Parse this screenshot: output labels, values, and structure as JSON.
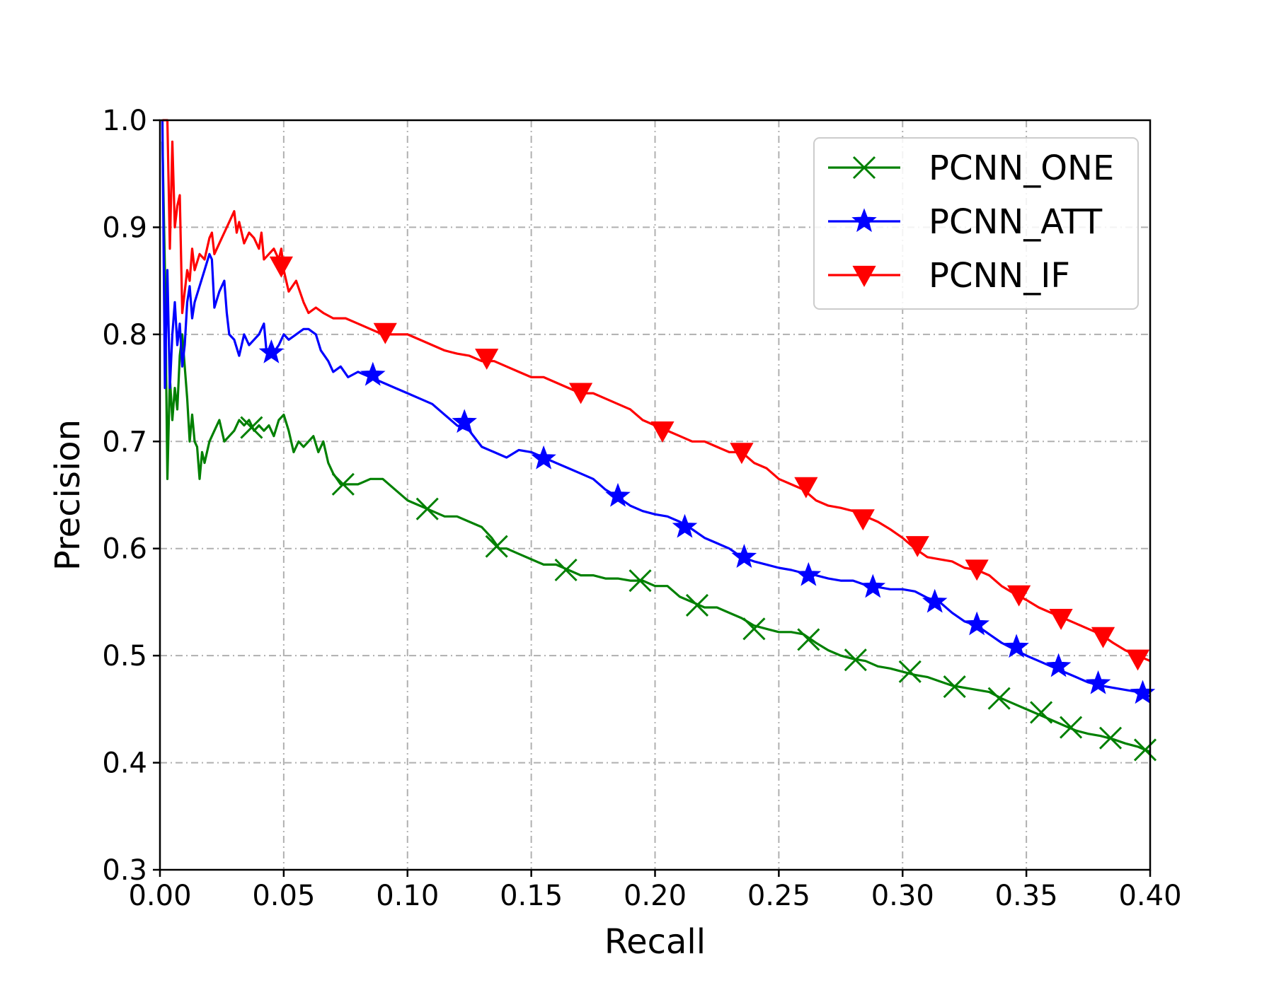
{
  "chart_data": {
    "type": "line",
    "xlabel": "Recall",
    "ylabel": "Precision",
    "xlim": [
      0.0,
      0.4
    ],
    "ylim": [
      0.3,
      1.0
    ],
    "xticks": [
      "0.00",
      "0.05",
      "0.10",
      "0.15",
      "0.20",
      "0.25",
      "0.30",
      "0.35",
      "0.40"
    ],
    "yticks": [
      "0.3",
      "0.4",
      "0.5",
      "0.6",
      "0.7",
      "0.8",
      "0.9",
      "1.0"
    ],
    "grid": true,
    "legend_position": "top-right",
    "series": [
      {
        "name": "PCNN_ONE",
        "color": "#008000",
        "marker": "x",
        "x": [
          0.001,
          0.002,
          0.003,
          0.004,
          0.005,
          0.006,
          0.007,
          0.008,
          0.009,
          0.01,
          0.011,
          0.012,
          0.013,
          0.014,
          0.015,
          0.016,
          0.017,
          0.018,
          0.02,
          0.022,
          0.024,
          0.026,
          0.028,
          0.03,
          0.032,
          0.034,
          0.036,
          0.038,
          0.04,
          0.042,
          0.044,
          0.046,
          0.048,
          0.05,
          0.052,
          0.054,
          0.056,
          0.058,
          0.06,
          0.062,
          0.064,
          0.066,
          0.068,
          0.07,
          0.073,
          0.076,
          0.08,
          0.085,
          0.09,
          0.095,
          0.1,
          0.105,
          0.11,
          0.115,
          0.12,
          0.125,
          0.13,
          0.134,
          0.137,
          0.14,
          0.145,
          0.15,
          0.155,
          0.16,
          0.165,
          0.17,
          0.175,
          0.18,
          0.185,
          0.19,
          0.195,
          0.2,
          0.205,
          0.21,
          0.215,
          0.22,
          0.225,
          0.23,
          0.235,
          0.24,
          0.245,
          0.25,
          0.255,
          0.26,
          0.265,
          0.27,
          0.275,
          0.28,
          0.285,
          0.29,
          0.295,
          0.3,
          0.305,
          0.31,
          0.315,
          0.32,
          0.325,
          0.33,
          0.335,
          0.34,
          0.345,
          0.35,
          0.355,
          0.36,
          0.365,
          0.37,
          0.375,
          0.38,
          0.385,
          0.39,
          0.395,
          0.4
        ],
        "y": [
          0.98,
          0.86,
          0.665,
          0.76,
          0.72,
          0.75,
          0.73,
          0.78,
          0.8,
          0.77,
          0.74,
          0.7,
          0.725,
          0.7,
          0.695,
          0.665,
          0.69,
          0.68,
          0.7,
          0.71,
          0.72,
          0.7,
          0.705,
          0.71,
          0.72,
          0.715,
          0.72,
          0.71,
          0.715,
          0.71,
          0.715,
          0.705,
          0.72,
          0.725,
          0.71,
          0.69,
          0.7,
          0.695,
          0.7,
          0.705,
          0.69,
          0.7,
          0.68,
          0.67,
          0.66,
          0.66,
          0.66,
          0.665,
          0.665,
          0.655,
          0.645,
          0.64,
          0.635,
          0.63,
          0.63,
          0.625,
          0.62,
          0.61,
          0.6,
          0.6,
          0.595,
          0.59,
          0.585,
          0.585,
          0.58,
          0.575,
          0.575,
          0.572,
          0.572,
          0.57,
          0.57,
          0.565,
          0.565,
          0.555,
          0.55,
          0.545,
          0.545,
          0.54,
          0.535,
          0.528,
          0.525,
          0.522,
          0.522,
          0.52,
          0.512,
          0.505,
          0.5,
          0.497,
          0.495,
          0.49,
          0.488,
          0.485,
          0.482,
          0.48,
          0.476,
          0.472,
          0.47,
          0.468,
          0.466,
          0.46,
          0.455,
          0.45,
          0.445,
          0.44,
          0.435,
          0.43,
          0.427,
          0.425,
          0.422,
          0.418,
          0.415,
          0.41
        ],
        "marker_x": [
          0.037,
          0.074,
          0.108,
          0.136,
          0.164,
          0.194,
          0.217,
          0.24,
          0.262,
          0.281,
          0.303,
          0.321,
          0.339,
          0.356,
          0.368,
          0.384,
          0.398
        ],
        "marker_y": [
          0.713,
          0.66,
          0.637,
          0.602,
          0.58,
          0.57,
          0.547,
          0.525,
          0.515,
          0.496,
          0.485,
          0.471,
          0.46,
          0.447,
          0.433,
          0.423,
          0.412
        ]
      },
      {
        "name": "PCNN_ATT",
        "color": "#0000ff",
        "marker": "star",
        "x": [
          0.001,
          0.002,
          0.003,
          0.004,
          0.005,
          0.006,
          0.007,
          0.008,
          0.009,
          0.01,
          0.011,
          0.012,
          0.013,
          0.014,
          0.016,
          0.018,
          0.02,
          0.021,
          0.022,
          0.024,
          0.026,
          0.027,
          0.028,
          0.03,
          0.032,
          0.034,
          0.036,
          0.038,
          0.04,
          0.042,
          0.043,
          0.045,
          0.048,
          0.05,
          0.052,
          0.055,
          0.058,
          0.06,
          0.063,
          0.065,
          0.068,
          0.07,
          0.073,
          0.076,
          0.08,
          0.085,
          0.09,
          0.095,
          0.1,
          0.105,
          0.11,
          0.115,
          0.12,
          0.125,
          0.13,
          0.135,
          0.14,
          0.145,
          0.15,
          0.155,
          0.16,
          0.165,
          0.17,
          0.175,
          0.18,
          0.185,
          0.19,
          0.195,
          0.2,
          0.205,
          0.21,
          0.215,
          0.22,
          0.225,
          0.23,
          0.235,
          0.24,
          0.245,
          0.25,
          0.255,
          0.26,
          0.265,
          0.27,
          0.275,
          0.28,
          0.285,
          0.29,
          0.295,
          0.3,
          0.305,
          0.31,
          0.315,
          0.32,
          0.325,
          0.33,
          0.335,
          0.34,
          0.345,
          0.35,
          0.355,
          0.36,
          0.365,
          0.37,
          0.375,
          0.38,
          0.385,
          0.39,
          0.395,
          0.4
        ],
        "y": [
          1.0,
          0.75,
          0.86,
          0.75,
          0.8,
          0.83,
          0.79,
          0.81,
          0.77,
          0.79,
          0.83,
          0.845,
          0.815,
          0.83,
          0.845,
          0.86,
          0.875,
          0.87,
          0.825,
          0.84,
          0.85,
          0.82,
          0.8,
          0.795,
          0.78,
          0.8,
          0.79,
          0.795,
          0.8,
          0.81,
          0.785,
          0.78,
          0.79,
          0.8,
          0.795,
          0.8,
          0.805,
          0.805,
          0.8,
          0.785,
          0.775,
          0.765,
          0.77,
          0.76,
          0.765,
          0.76,
          0.755,
          0.75,
          0.745,
          0.74,
          0.735,
          0.725,
          0.715,
          0.71,
          0.695,
          0.69,
          0.685,
          0.692,
          0.69,
          0.685,
          0.68,
          0.675,
          0.67,
          0.665,
          0.655,
          0.648,
          0.64,
          0.635,
          0.632,
          0.63,
          0.625,
          0.618,
          0.61,
          0.605,
          0.6,
          0.592,
          0.588,
          0.585,
          0.582,
          0.58,
          0.577,
          0.575,
          0.572,
          0.57,
          0.57,
          0.566,
          0.564,
          0.562,
          0.562,
          0.56,
          0.554,
          0.55,
          0.54,
          0.532,
          0.528,
          0.52,
          0.512,
          0.506,
          0.5,
          0.495,
          0.49,
          0.485,
          0.48,
          0.475,
          0.472,
          0.47,
          0.468,
          0.466,
          0.462
        ],
        "marker_x": [
          0.045,
          0.086,
          0.123,
          0.155,
          0.185,
          0.212,
          0.236,
          0.262,
          0.288,
          0.313,
          0.33,
          0.346,
          0.363,
          0.379,
          0.397
        ],
        "marker_y": [
          0.783,
          0.762,
          0.718,
          0.684,
          0.649,
          0.62,
          0.592,
          0.575,
          0.564,
          0.55,
          0.529,
          0.508,
          0.49,
          0.474,
          0.465
        ]
      },
      {
        "name": "PCNN_IF",
        "color": "#ff0000",
        "marker": "triangle-down",
        "x": [
          0.001,
          0.002,
          0.003,
          0.004,
          0.005,
          0.006,
          0.007,
          0.008,
          0.009,
          0.01,
          0.011,
          0.012,
          0.013,
          0.014,
          0.016,
          0.018,
          0.02,
          0.021,
          0.022,
          0.024,
          0.026,
          0.028,
          0.03,
          0.031,
          0.032,
          0.034,
          0.036,
          0.038,
          0.04,
          0.041,
          0.042,
          0.044,
          0.046,
          0.048,
          0.049,
          0.05,
          0.052,
          0.055,
          0.058,
          0.06,
          0.063,
          0.066,
          0.07,
          0.075,
          0.08,
          0.085,
          0.09,
          0.095,
          0.1,
          0.105,
          0.11,
          0.115,
          0.12,
          0.125,
          0.13,
          0.135,
          0.14,
          0.145,
          0.15,
          0.155,
          0.16,
          0.165,
          0.17,
          0.175,
          0.18,
          0.185,
          0.19,
          0.195,
          0.2,
          0.205,
          0.21,
          0.215,
          0.22,
          0.225,
          0.23,
          0.235,
          0.24,
          0.245,
          0.25,
          0.255,
          0.26,
          0.265,
          0.27,
          0.275,
          0.28,
          0.285,
          0.29,
          0.295,
          0.3,
          0.305,
          0.31,
          0.315,
          0.32,
          0.325,
          0.33,
          0.335,
          0.34,
          0.345,
          0.35,
          0.355,
          0.36,
          0.365,
          0.37,
          0.375,
          0.38,
          0.385,
          0.39,
          0.395,
          0.4
        ],
        "y": [
          1.0,
          1.0,
          1.0,
          0.88,
          0.98,
          0.9,
          0.92,
          0.93,
          0.82,
          0.84,
          0.86,
          0.85,
          0.88,
          0.86,
          0.875,
          0.87,
          0.89,
          0.895,
          0.875,
          0.885,
          0.895,
          0.905,
          0.915,
          0.895,
          0.905,
          0.885,
          0.895,
          0.89,
          0.88,
          0.895,
          0.87,
          0.875,
          0.88,
          0.87,
          0.88,
          0.86,
          0.84,
          0.85,
          0.83,
          0.82,
          0.825,
          0.82,
          0.815,
          0.815,
          0.81,
          0.805,
          0.8,
          0.8,
          0.8,
          0.795,
          0.79,
          0.785,
          0.782,
          0.78,
          0.775,
          0.775,
          0.77,
          0.765,
          0.76,
          0.76,
          0.755,
          0.75,
          0.745,
          0.745,
          0.74,
          0.735,
          0.73,
          0.72,
          0.715,
          0.71,
          0.705,
          0.7,
          0.7,
          0.695,
          0.69,
          0.69,
          0.68,
          0.675,
          0.665,
          0.66,
          0.655,
          0.645,
          0.64,
          0.638,
          0.635,
          0.63,
          0.625,
          0.618,
          0.61,
          0.6,
          0.592,
          0.59,
          0.588,
          0.582,
          0.58,
          0.575,
          0.565,
          0.558,
          0.552,
          0.545,
          0.54,
          0.535,
          0.53,
          0.525,
          0.52,
          0.512,
          0.505,
          0.5,
          0.495
        ],
        "marker_x": [
          0.049,
          0.091,
          0.132,
          0.17,
          0.203,
          0.235,
          0.261,
          0.284,
          0.306,
          0.33,
          0.347,
          0.364,
          0.381,
          0.395
        ],
        "marker_y": [
          0.864,
          0.802,
          0.778,
          0.746,
          0.71,
          0.69,
          0.658,
          0.628,
          0.603,
          0.581,
          0.557,
          0.535,
          0.518,
          0.497
        ]
      }
    ]
  }
}
